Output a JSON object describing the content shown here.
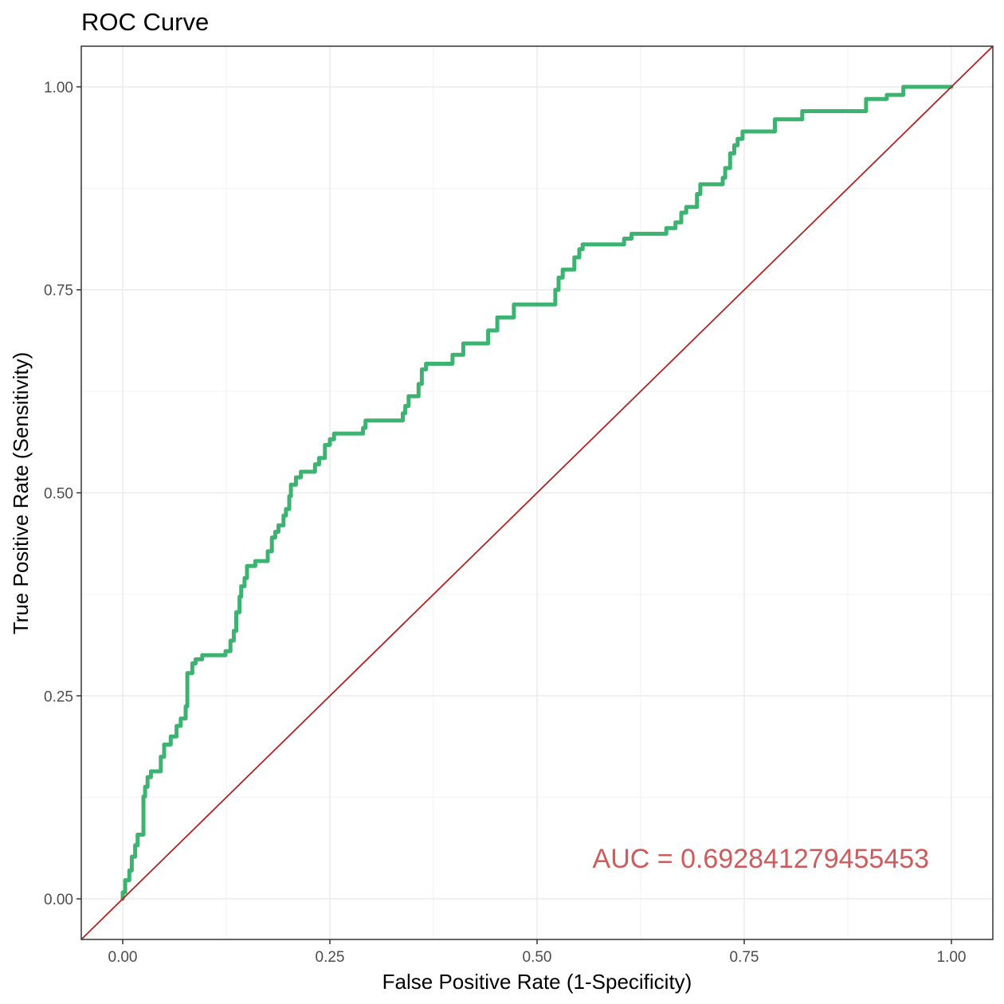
{
  "chart_data": {
    "type": "line",
    "title": "ROC Curve",
    "xlabel": "False Positive Rate (1-Specificity)",
    "ylabel": "True Positive Rate (Sensitivity)",
    "xlim": [
      -0.05,
      1.05
    ],
    "ylim": [
      -0.05,
      1.05
    ],
    "x_ticks": [
      0.0,
      0.25,
      0.5,
      0.75,
      1.0
    ],
    "y_ticks": [
      0.0,
      0.25,
      0.5,
      0.75,
      1.0
    ],
    "x_tick_labels": [
      "0.00",
      "0.25",
      "0.50",
      "0.75",
      "1.00"
    ],
    "y_tick_labels": [
      "0.00",
      "0.25",
      "0.50",
      "0.75",
      "1.00"
    ],
    "grid": true,
    "annotation": {
      "text": "AUC = 0.692841279455453",
      "x": 0.77,
      "y": 0.05,
      "color": "#cd5c5c"
    },
    "series": [
      {
        "color": "#3cb371",
        "points": [
          [
            0.0,
            0.0
          ],
          [
            0.0,
            0.008
          ],
          [
            0.003,
            0.008
          ],
          [
            0.003,
            0.023
          ],
          [
            0.008,
            0.023
          ],
          [
            0.008,
            0.035
          ],
          [
            0.011,
            0.035
          ],
          [
            0.011,
            0.052
          ],
          [
            0.015,
            0.052
          ],
          [
            0.015,
            0.066
          ],
          [
            0.018,
            0.066
          ],
          [
            0.018,
            0.079
          ],
          [
            0.025,
            0.079
          ],
          [
            0.025,
            0.126
          ],
          [
            0.027,
            0.126
          ],
          [
            0.027,
            0.138
          ],
          [
            0.03,
            0.138
          ],
          [
            0.03,
            0.15
          ],
          [
            0.034,
            0.15
          ],
          [
            0.034,
            0.157
          ],
          [
            0.046,
            0.157
          ],
          [
            0.046,
            0.175
          ],
          [
            0.05,
            0.175
          ],
          [
            0.05,
            0.19
          ],
          [
            0.058,
            0.19
          ],
          [
            0.058,
            0.2
          ],
          [
            0.065,
            0.2
          ],
          [
            0.065,
            0.213
          ],
          [
            0.07,
            0.213
          ],
          [
            0.07,
            0.222
          ],
          [
            0.076,
            0.222
          ],
          [
            0.076,
            0.237
          ],
          [
            0.078,
            0.237
          ],
          [
            0.078,
            0.278
          ],
          [
            0.084,
            0.278
          ],
          [
            0.084,
            0.29
          ],
          [
            0.088,
            0.29
          ],
          [
            0.088,
            0.295
          ],
          [
            0.096,
            0.295
          ],
          [
            0.096,
            0.3
          ],
          [
            0.124,
            0.3
          ],
          [
            0.124,
            0.305
          ],
          [
            0.13,
            0.305
          ],
          [
            0.13,
            0.318
          ],
          [
            0.134,
            0.318
          ],
          [
            0.134,
            0.33
          ],
          [
            0.137,
            0.33
          ],
          [
            0.137,
            0.353
          ],
          [
            0.141,
            0.353
          ],
          [
            0.141,
            0.372
          ],
          [
            0.143,
            0.372
          ],
          [
            0.143,
            0.385
          ],
          [
            0.147,
            0.385
          ],
          [
            0.147,
            0.395
          ],
          [
            0.15,
            0.395
          ],
          [
            0.15,
            0.41
          ],
          [
            0.16,
            0.41
          ],
          [
            0.16,
            0.416
          ],
          [
            0.175,
            0.416
          ],
          [
            0.175,
            0.428
          ],
          [
            0.18,
            0.428
          ],
          [
            0.18,
            0.445
          ],
          [
            0.184,
            0.445
          ],
          [
            0.184,
            0.452
          ],
          [
            0.188,
            0.452
          ],
          [
            0.188,
            0.46
          ],
          [
            0.194,
            0.46
          ],
          [
            0.194,
            0.472
          ],
          [
            0.197,
            0.472
          ],
          [
            0.197,
            0.48
          ],
          [
            0.201,
            0.48
          ],
          [
            0.201,
            0.496
          ],
          [
            0.203,
            0.496
          ],
          [
            0.203,
            0.51
          ],
          [
            0.209,
            0.51
          ],
          [
            0.209,
            0.519
          ],
          [
            0.215,
            0.519
          ],
          [
            0.215,
            0.526
          ],
          [
            0.232,
            0.526
          ],
          [
            0.232,
            0.535
          ],
          [
            0.237,
            0.535
          ],
          [
            0.237,
            0.543
          ],
          [
            0.244,
            0.543
          ],
          [
            0.244,
            0.559
          ],
          [
            0.25,
            0.559
          ],
          [
            0.25,
            0.566
          ],
          [
            0.255,
            0.566
          ],
          [
            0.255,
            0.573
          ],
          [
            0.29,
            0.573
          ],
          [
            0.29,
            0.58
          ],
          [
            0.293,
            0.58
          ],
          [
            0.293,
            0.589
          ],
          [
            0.338,
            0.589
          ],
          [
            0.338,
            0.598
          ],
          [
            0.341,
            0.598
          ],
          [
            0.341,
            0.607
          ],
          [
            0.345,
            0.607
          ],
          [
            0.345,
            0.619
          ],
          [
            0.357,
            0.619
          ],
          [
            0.357,
            0.634
          ],
          [
            0.361,
            0.634
          ],
          [
            0.361,
            0.652
          ],
          [
            0.366,
            0.652
          ],
          [
            0.366,
            0.659
          ],
          [
            0.398,
            0.659
          ],
          [
            0.398,
            0.67
          ],
          [
            0.411,
            0.67
          ],
          [
            0.411,
            0.684
          ],
          [
            0.441,
            0.684
          ],
          [
            0.441,
            0.7
          ],
          [
            0.452,
            0.7
          ],
          [
            0.452,
            0.716
          ],
          [
            0.472,
            0.716
          ],
          [
            0.472,
            0.732
          ],
          [
            0.522,
            0.732
          ],
          [
            0.522,
            0.75
          ],
          [
            0.526,
            0.75
          ],
          [
            0.526,
            0.765
          ],
          [
            0.531,
            0.765
          ],
          [
            0.531,
            0.775
          ],
          [
            0.545,
            0.775
          ],
          [
            0.545,
            0.79
          ],
          [
            0.551,
            0.79
          ],
          [
            0.551,
            0.8
          ],
          [
            0.555,
            0.8
          ],
          [
            0.555,
            0.806
          ],
          [
            0.605,
            0.806
          ],
          [
            0.605,
            0.813
          ],
          [
            0.614,
            0.813
          ],
          [
            0.614,
            0.819
          ],
          [
            0.656,
            0.819
          ],
          [
            0.656,
            0.826
          ],
          [
            0.667,
            0.826
          ],
          [
            0.667,
            0.833
          ],
          [
            0.674,
            0.833
          ],
          [
            0.674,
            0.845
          ],
          [
            0.68,
            0.845
          ],
          [
            0.68,
            0.852
          ],
          [
            0.693,
            0.852
          ],
          [
            0.693,
            0.868
          ],
          [
            0.697,
            0.868
          ],
          [
            0.697,
            0.88
          ],
          [
            0.724,
            0.88
          ],
          [
            0.724,
            0.888
          ],
          [
            0.727,
            0.888
          ],
          [
            0.727,
            0.9
          ],
          [
            0.733,
            0.9
          ],
          [
            0.733,
            0.918
          ],
          [
            0.738,
            0.918
          ],
          [
            0.738,
            0.928
          ],
          [
            0.742,
            0.928
          ],
          [
            0.742,
            0.936
          ],
          [
            0.748,
            0.936
          ],
          [
            0.748,
            0.945
          ],
          [
            0.787,
            0.945
          ],
          [
            0.787,
            0.96
          ],
          [
            0.82,
            0.96
          ],
          [
            0.82,
            0.97
          ],
          [
            0.897,
            0.97
          ],
          [
            0.897,
            0.985
          ],
          [
            0.922,
            0.985
          ],
          [
            0.922,
            0.99
          ],
          [
            0.942,
            0.99
          ],
          [
            0.942,
            1.0
          ],
          [
            1.0,
            1.0
          ]
        ]
      }
    ],
    "reference_line": {
      "color": "#b22222",
      "from": [
        -0.05,
        -0.05
      ],
      "to": [
        1.05,
        1.05
      ]
    }
  }
}
